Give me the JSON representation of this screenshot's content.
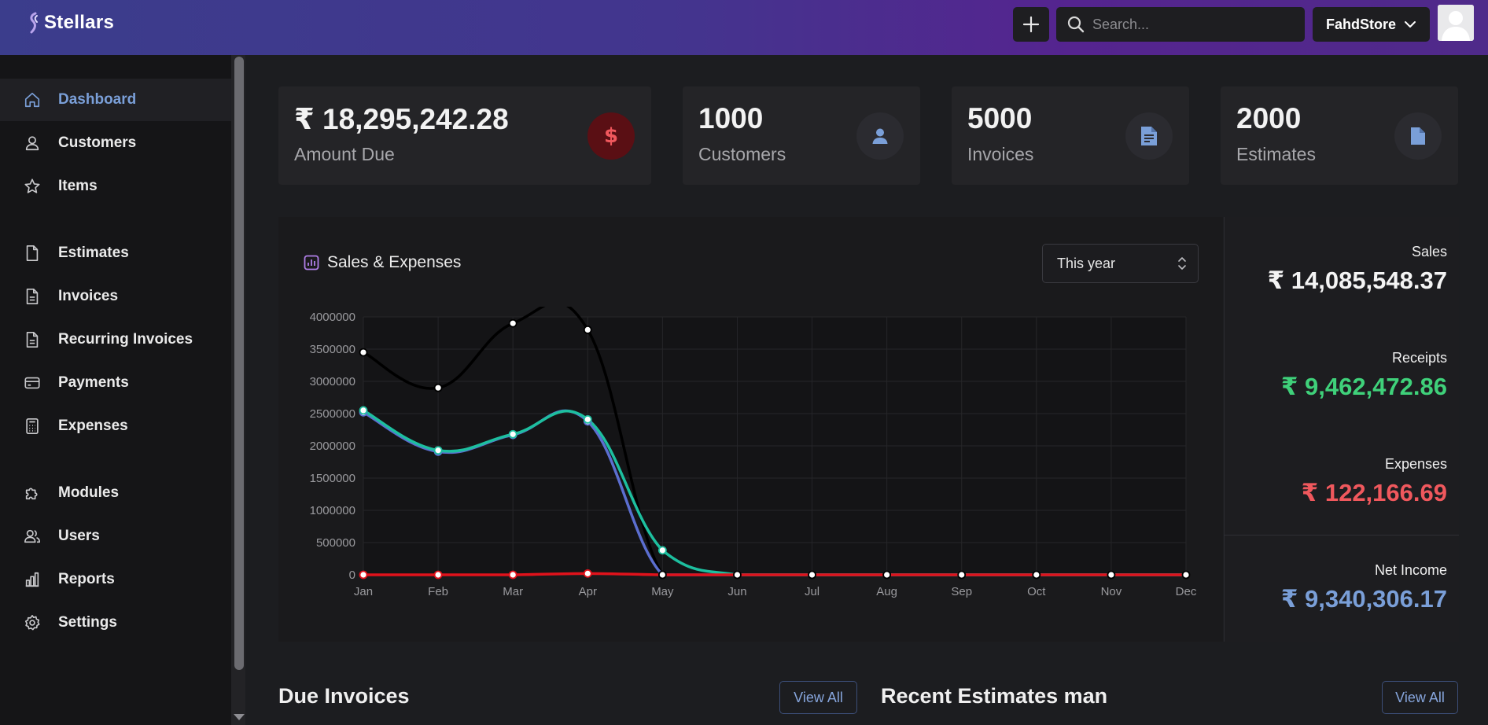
{
  "header": {
    "brand": "Stellars",
    "search_placeholder": "Search...",
    "store_name": "FahdStore"
  },
  "sidebar": {
    "items": [
      {
        "label": "Dashboard",
        "icon": "home-icon",
        "active": true
      },
      {
        "label": "Customers",
        "icon": "user-icon"
      },
      {
        "label": "Items",
        "icon": "star-icon"
      },
      {
        "label": "Estimates",
        "icon": "file-icon"
      },
      {
        "label": "Invoices",
        "icon": "document-icon"
      },
      {
        "label": "Recurring Invoices",
        "icon": "document-icon"
      },
      {
        "label": "Payments",
        "icon": "credit-card-icon"
      },
      {
        "label": "Expenses",
        "icon": "calculator-icon"
      },
      {
        "label": "Modules",
        "icon": "puzzle-icon"
      },
      {
        "label": "Users",
        "icon": "users-icon"
      },
      {
        "label": "Reports",
        "icon": "bar-chart-icon"
      },
      {
        "label": "Settings",
        "icon": "gear-icon"
      }
    ]
  },
  "stats": {
    "amount_due": {
      "value": "₹ 18,295,242.28",
      "label": "Amount Due"
    },
    "customers": {
      "value": "1000",
      "label": "Customers"
    },
    "invoices": {
      "value": "5000",
      "label": "Invoices"
    },
    "estimates": {
      "value": "2000",
      "label": "Estimates"
    }
  },
  "chart_panel": {
    "title": "Sales & Expenses",
    "period": "This year"
  },
  "summary": {
    "sales_label": "Sales",
    "sales_value": "₹ 14,085,548.37",
    "receipts_label": "Receipts",
    "receipts_value": "₹ 9,462,472.86",
    "expenses_label": "Expenses",
    "expenses_value": "₹ 122,166.69",
    "net_income_label": "Net Income",
    "net_income_value": "₹ 9,340,306.17"
  },
  "sections": {
    "due_invoices": "Due Invoices",
    "recent_estimates": "Recent Estimates man",
    "view_all": "View All"
  },
  "colors": {
    "sales_line": "#000000",
    "receipts_line": "#1dbf9f",
    "net_income_line": "#5b6ecf",
    "expenses_line": "#e0121b",
    "positive": "#3fd17a",
    "negative": "#f0585d",
    "accent": "#7a9fd8"
  },
  "chart_data": {
    "type": "line",
    "categories": [
      "Jan",
      "Feb",
      "Mar",
      "Apr",
      "May",
      "Jun",
      "Jul",
      "Aug",
      "Sep",
      "Oct",
      "Nov",
      "Dec"
    ],
    "ylim": [
      0,
      4000000
    ],
    "yticks": [
      "4000000",
      "3500000",
      "3000000",
      "2500000",
      "2000000",
      "1500000",
      "1000000",
      "500000",
      "0"
    ],
    "grid": true,
    "series": [
      {
        "values": [
          3450000,
          2900000,
          3900000,
          3800000,
          0,
          0,
          0,
          0,
          0,
          0,
          0,
          0
        ],
        "color": "#000000"
      },
      {
        "values": [
          2520000,
          1910000,
          2170000,
          2380000,
          0,
          0,
          0,
          0,
          0,
          0,
          0,
          0
        ],
        "color": "#5b6ecf"
      },
      {
        "values": [
          2550000,
          1930000,
          2180000,
          2410000,
          380000,
          0,
          0,
          0,
          0,
          0,
          0,
          0
        ],
        "color": "#1dbf9f"
      },
      {
        "values": [
          0,
          0,
          0,
          20000,
          0,
          0,
          0,
          0,
          0,
          0,
          0,
          0
        ],
        "color": "#e0121b"
      }
    ]
  }
}
